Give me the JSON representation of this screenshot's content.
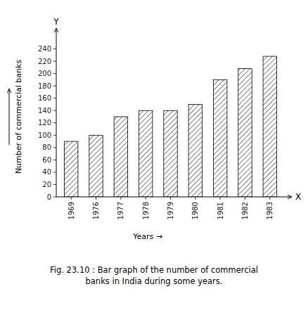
{
  "chart_data": {
    "type": "bar",
    "title": "Fig. 23.10 : Bar graph of the number of commercial\nbanks in India during some years.",
    "x_label": "Years  →",
    "y_label": "Number of commercial banks",
    "annotations": [
      "Y",
      "X"
    ],
    "categories": [
      "1969",
      "1976",
      "1977",
      "1978",
      "1979",
      "1980",
      "1981",
      "1982",
      "1983"
    ],
    "values": [
      90,
      100,
      130,
      140,
      140,
      150,
      190,
      208,
      228
    ],
    "color": "#ffffff",
    "ylim": [
      0,
      260
    ],
    "yticks": [
      0,
      20,
      40,
      60,
      80,
      100,
      120,
      140,
      160,
      180,
      200,
      220,
      240
    ],
    "grid": false
  }
}
